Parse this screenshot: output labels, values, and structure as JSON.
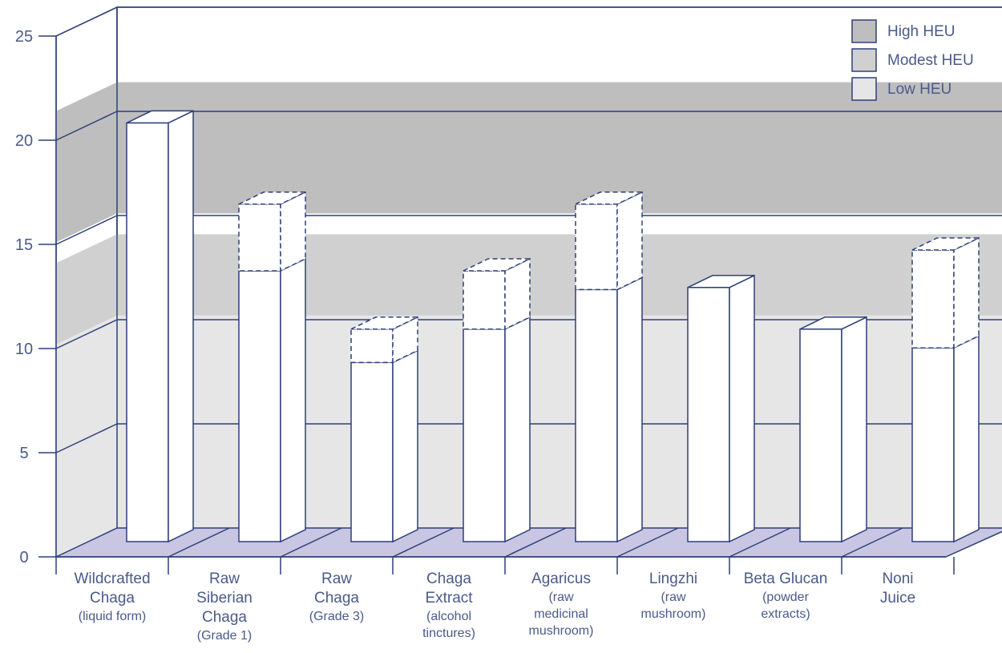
{
  "chart_data": {
    "type": "bar",
    "title": "",
    "xlabel": "",
    "ylabel": "",
    "ylim": [
      0,
      25
    ],
    "yticks": [
      "0",
      "5",
      "10",
      "15",
      "20",
      "25"
    ],
    "grid": true,
    "legend_position": "top-right",
    "categories": [
      {
        "main": [
          "Wildcrafted",
          "Chaga"
        ],
        "sub": [
          "(liquid form)"
        ]
      },
      {
        "main": [
          "Raw",
          "Siberian",
          "Chaga"
        ],
        "sub": [
          "(Grade 1)"
        ]
      },
      {
        "main": [
          "Raw",
          "Chaga"
        ],
        "sub": [
          "(Grade 3)"
        ]
      },
      {
        "main": [
          "Chaga",
          "Extract"
        ],
        "sub": [
          "(alcohol",
          "tinctures)"
        ]
      },
      {
        "main": [
          "Agaricus"
        ],
        "sub": [
          "(raw",
          "medicinal",
          "mushroom)"
        ]
      },
      {
        "main": [
          "Lingzhi"
        ],
        "sub": [
          "(raw",
          "mushroom)"
        ]
      },
      {
        "main": [
          "Beta Glucan"
        ],
        "sub": [
          "(powder",
          "extracts)"
        ]
      },
      {
        "main": [
          "Noni",
          "Juice"
        ],
        "sub": []
      }
    ],
    "series": [
      {
        "values": [
          20.1,
          13,
          8.6,
          10.2,
          12.1,
          12.2,
          10.2,
          9.3
        ]
      },
      {
        "values": [
          0,
          3.2,
          1.6,
          2.8,
          4.1,
          0,
          0,
          4.7
        ]
      }
    ],
    "bands": [
      {
        "label": "Low HEU",
        "from": 0,
        "to": 10.2,
        "color": "#e6e6e6"
      },
      {
        "label": "Modest HEU",
        "from": 10.2,
        "to": 14.1,
        "color": "#d0d0d0"
      },
      {
        "label": "High HEU",
        "from": 15.1,
        "to": 21.4,
        "color": "#bebebe"
      }
    ],
    "colors": {
      "bar_fill": "#ffffff",
      "outline": "#2f3f7a",
      "floor": "#c8c6e2",
      "text": "#4a5a8a"
    }
  },
  "legend": [
    {
      "label": "High HEU",
      "color": "#bebebe"
    },
    {
      "label": "Modest HEU",
      "color": "#d0d0d0"
    },
    {
      "label": "Low HEU",
      "color": "#e6e6e6"
    }
  ]
}
